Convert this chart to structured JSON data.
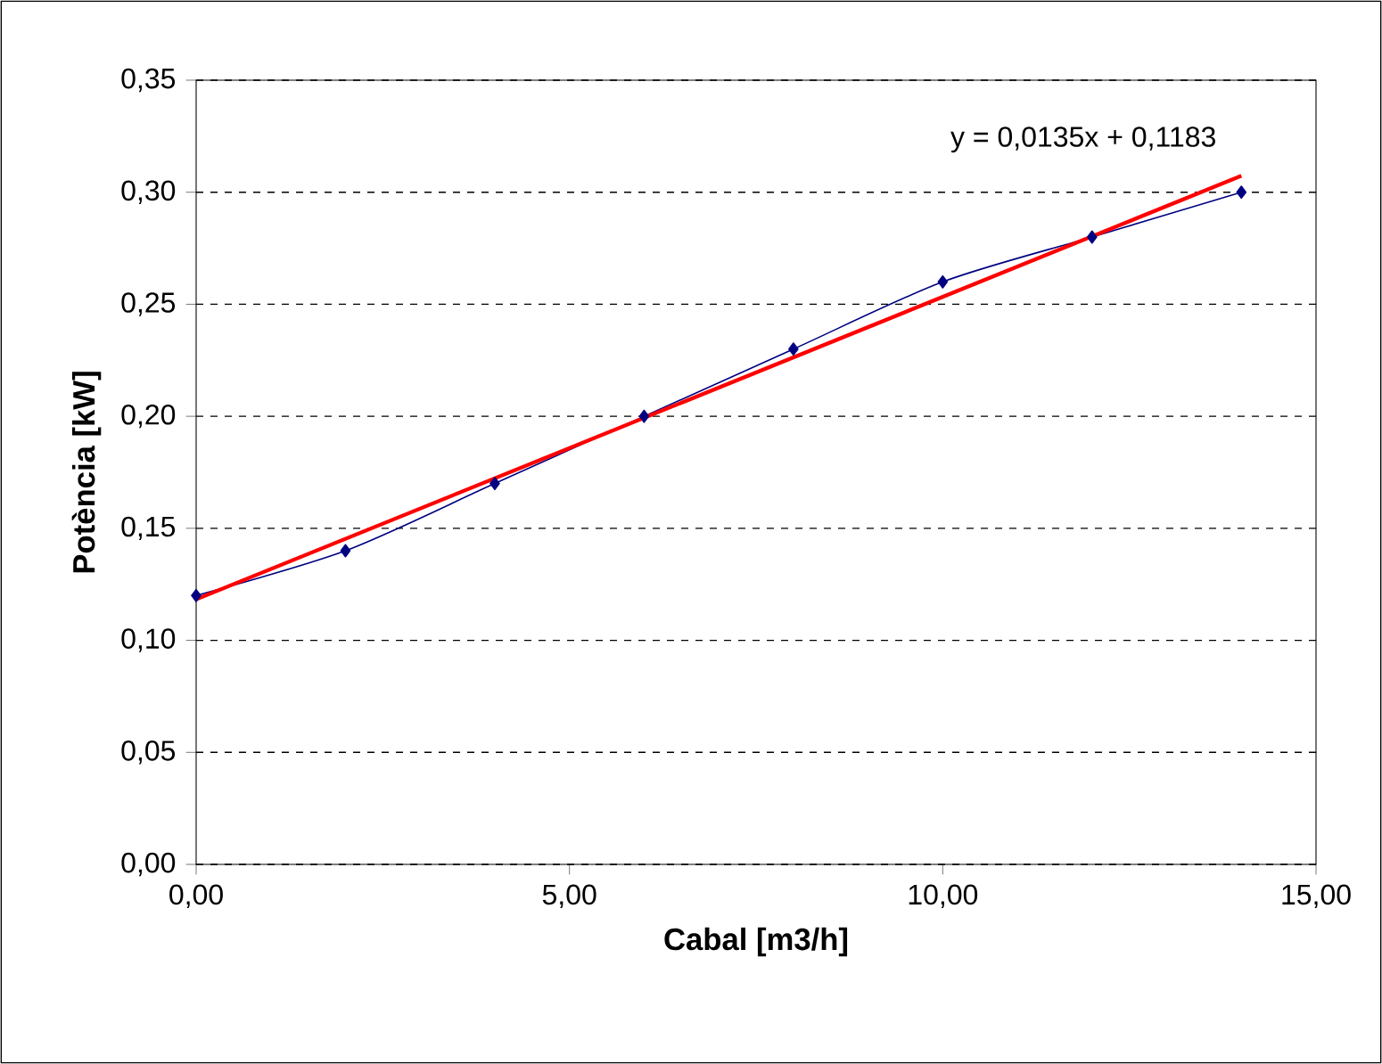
{
  "chart_data": {
    "type": "line",
    "xlabel": "Cabal [m3/h]",
    "ylabel": "Potència [kW]",
    "annotations": [
      "y = 0,0135x + 0,1183"
    ],
    "x": [
      0,
      2,
      4,
      6,
      8,
      10,
      12,
      14
    ],
    "series": [
      {
        "color": "#000080",
        "values": [
          0.12,
          0.14,
          0.17,
          0.2,
          0.23,
          0.26,
          0.28,
          0.3
        ],
        "marker": "diamond"
      },
      {
        "color": "#ff0000",
        "x": [
          0,
          14
        ],
        "values": [
          0.1183,
          0.3073
        ],
        "marker": "none"
      }
    ],
    "xlim": [
      0,
      15
    ],
    "ylim": [
      0,
      0.35
    ],
    "xticks": [
      {
        "value": 0,
        "label": "0,00"
      },
      {
        "value": 5,
        "label": "5,00"
      },
      {
        "value": 10,
        "label": "10,00"
      },
      {
        "value": 15,
        "label": "15,00"
      }
    ],
    "yticks": [
      {
        "value": 0,
        "label": "0,00"
      },
      {
        "value": 0.05,
        "label": "0,05"
      },
      {
        "value": 0.1,
        "label": "0,10"
      },
      {
        "value": 0.15,
        "label": "0,15"
      },
      {
        "value": 0.2,
        "label": "0,20"
      },
      {
        "value": 0.25,
        "label": "0,25"
      },
      {
        "value": 0.3,
        "label": "0,30"
      },
      {
        "value": 0.35,
        "label": "0,35"
      }
    ],
    "grid": "y",
    "line_style": "solid"
  }
}
